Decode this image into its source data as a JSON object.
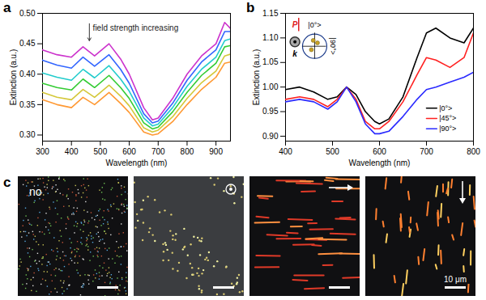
{
  "chart_data": [
    {
      "type": "line",
      "panel": "a",
      "xlabel": "Wavelength (nm)",
      "ylabel": "Extinction (a.u.)",
      "annotations": [
        "field strength increasing"
      ],
      "x": [
        300,
        350,
        400,
        440,
        480,
        530,
        570,
        600,
        650,
        680,
        700,
        750,
        800,
        850,
        900,
        930,
        950
      ],
      "series": [
        {
          "color": "#cc33cc",
          "values": [
            0.44,
            0.432,
            0.428,
            0.445,
            0.43,
            0.45,
            0.425,
            0.4,
            0.345,
            0.325,
            0.328,
            0.36,
            0.4,
            0.43,
            0.45,
            0.485,
            0.475
          ]
        },
        {
          "color": "#3366ff",
          "values": [
            0.423,
            0.415,
            0.41,
            0.428,
            0.413,
            0.432,
            0.408,
            0.385,
            0.335,
            0.32,
            0.323,
            0.352,
            0.39,
            0.42,
            0.44,
            0.47,
            0.47
          ]
        },
        {
          "color": "#22cccc",
          "values": [
            0.402,
            0.395,
            0.39,
            0.408,
            0.394,
            0.414,
            0.392,
            0.372,
            0.328,
            0.315,
            0.318,
            0.345,
            0.38,
            0.408,
            0.428,
            0.455,
            0.458
          ]
        },
        {
          "color": "#33cc33",
          "values": [
            0.385,
            0.378,
            0.374,
            0.392,
            0.378,
            0.398,
            0.378,
            0.36,
            0.32,
            0.31,
            0.313,
            0.338,
            0.37,
            0.398,
            0.418,
            0.445,
            0.447
          ]
        },
        {
          "color": "#d4c83a",
          "values": [
            0.37,
            0.362,
            0.358,
            0.375,
            0.362,
            0.382,
            0.364,
            0.348,
            0.312,
            0.305,
            0.308,
            0.33,
            0.36,
            0.386,
            0.405,
            0.43,
            0.433
          ]
        },
        {
          "color": "#ff9933",
          "values": [
            0.358,
            0.35,
            0.345,
            0.362,
            0.35,
            0.37,
            0.352,
            0.337,
            0.305,
            0.3,
            0.302,
            0.322,
            0.35,
            0.375,
            0.395,
            0.418,
            0.42
          ]
        }
      ],
      "xlim": [
        300,
        950
      ],
      "xticks": [
        300,
        400,
        500,
        600,
        700,
        800,
        900
      ],
      "ylim": [
        0.29,
        0.5
      ],
      "yticks": [
        {
          "value": 0.3,
          "label": "0.30"
        },
        0.35,
        {
          "value": 0.4,
          "label": "0.40"
        },
        0.45,
        {
          "value": 0.5,
          "label": "0.50"
        }
      ]
    },
    {
      "type": "line",
      "panel": "b",
      "xlabel": "Wavelength (nm)",
      "ylabel": "Extinction (a.u.)",
      "annotations": [
        "P",
        "k",
        "|0°>",
        "|90°>"
      ],
      "legend": "lower right",
      "x": [
        400,
        430,
        460,
        490,
        510,
        530,
        550,
        570,
        590,
        600,
        620,
        650,
        680,
        700,
        720,
        750,
        780,
        800
      ],
      "series": [
        {
          "name": "|0°>",
          "color": "#000000",
          "values": [
            0.995,
            1.0,
            0.99,
            0.975,
            0.98,
            1.0,
            0.985,
            0.95,
            0.93,
            0.925,
            0.935,
            0.98,
            1.06,
            1.11,
            1.12,
            1.1,
            1.09,
            1.12
          ]
        },
        {
          "name": "|45°>",
          "color": "#ff2020",
          "values": [
            0.975,
            0.98,
            0.975,
            0.96,
            0.975,
            1.0,
            0.975,
            0.93,
            0.915,
            0.915,
            0.93,
            0.97,
            1.025,
            1.06,
            1.055,
            1.04,
            1.06,
            1.11
          ]
        },
        {
          "name": "|90°>",
          "color": "#2a2aff",
          "values": [
            0.97,
            0.975,
            0.97,
            0.955,
            0.97,
            1.0,
            0.97,
            0.925,
            0.905,
            0.905,
            0.91,
            0.94,
            0.975,
            0.995,
            1.0,
            1.01,
            1.02,
            1.03
          ]
        }
      ],
      "xlim": [
        400,
        800
      ],
      "xticks": [
        400,
        500,
        600,
        700,
        800
      ],
      "ylim": [
        0.89,
        1.15
      ],
      "yticks": [
        {
          "value": 0.9,
          "label": "0.90"
        },
        0.95,
        {
          "value": 1.0,
          "label": "1.00"
        },
        1.05,
        {
          "value": 1.1,
          "label": "1.10"
        },
        1.15
      ]
    }
  ],
  "images": {
    "panel": "c",
    "frames": [
      {
        "label": "no"
      },
      {
        "field": "out"
      },
      {
        "field": "right"
      },
      {
        "field": "down"
      }
    ],
    "scale_bar": "10 μm"
  }
}
